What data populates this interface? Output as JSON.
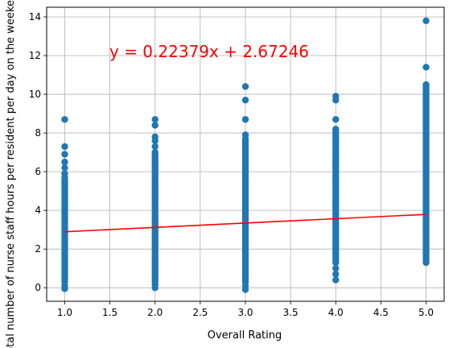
{
  "chart_data": {
    "type": "scatter",
    "title": "",
    "xlabel": "Overall Rating",
    "ylabel": "Total number of nurse staff hours per resident per day on the weekend",
    "xlim": [
      0.8,
      5.2
    ],
    "ylim": [
      -0.7,
      14.5
    ],
    "x_ticks": [
      "1.0",
      "1.5",
      "2.0",
      "2.5",
      "3.0",
      "3.5",
      "4.0",
      "4.5",
      "5.0"
    ],
    "y_ticks": [
      "0",
      "2",
      "4",
      "6",
      "8",
      "10",
      "12",
      "14"
    ],
    "grid": true,
    "annotation": "y = 0.22379x + 2.67246",
    "regression": {
      "slope": 0.22379,
      "intercept": 2.67246
    },
    "colors": {
      "points": "#1f77b4",
      "line": "#ff0000",
      "grid": "#b0b0b0",
      "annotation": "#ff0000"
    },
    "series": [
      {
        "x_value": 1,
        "dense_range": [
          0.3,
          5.7
        ],
        "sparse_values": [
          -0.05,
          0.1,
          5.9,
          6.2,
          6.5,
          6.9,
          7.3,
          8.7
        ]
      },
      {
        "x_value": 2,
        "dense_range": [
          0.3,
          7.0
        ],
        "sparse_values": [
          0.0,
          0.15,
          7.3,
          7.6,
          7.8,
          8.4,
          8.7
        ]
      },
      {
        "x_value": 3,
        "dense_range": [
          0.3,
          7.7
        ],
        "sparse_values": [
          -0.1,
          0.1,
          7.9,
          8.7,
          9.7,
          10.4
        ]
      },
      {
        "x_value": 4,
        "dense_range": [
          1.3,
          8.2
        ],
        "sparse_values": [
          0.4,
          0.7,
          1.0,
          8.7,
          9.7,
          9.9
        ]
      },
      {
        "x_value": 5,
        "dense_range": [
          1.3,
          10.5
        ],
        "sparse_values": [
          11.4,
          13.8
        ]
      }
    ]
  }
}
